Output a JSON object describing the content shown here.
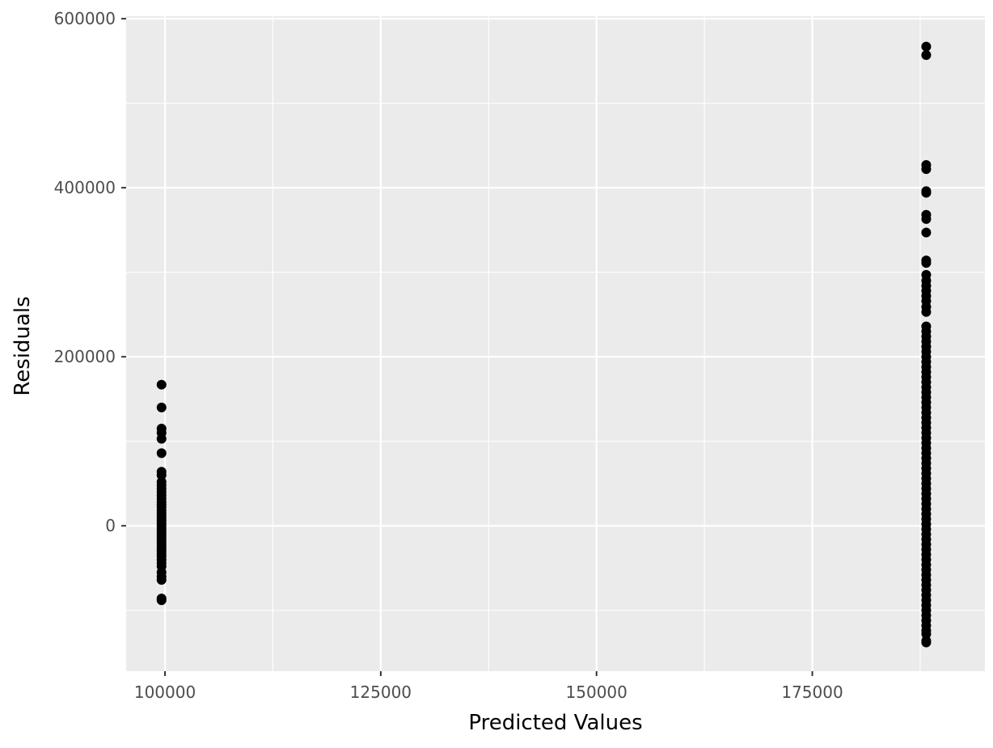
{
  "chart_data": {
    "type": "scatter",
    "title": "",
    "xlabel": "Predicted Values",
    "ylabel": "Residuals",
    "xlim": [
      95500,
      195000
    ],
    "ylim": [
      -172000,
      603000
    ],
    "x_major_ticks": [
      100000,
      125000,
      150000,
      175000
    ],
    "x_tick_labels": [
      "100000",
      "125000",
      "150000",
      "175000"
    ],
    "x_minor_ticks": [
      112500,
      137500,
      162500,
      187500
    ],
    "y_major_ticks": [
      0,
      200000,
      400000,
      600000
    ],
    "y_tick_labels": [
      "0",
      "200000",
      "400000",
      "600000"
    ],
    "y_minor_ticks": [
      -100000,
      100000,
      300000,
      500000
    ],
    "grid": true,
    "legend": "none",
    "colors": {
      "panel_background": "#ebebeb",
      "grid_line": "#ffffff",
      "point": "#000000",
      "tick_label": "#4d4d4d",
      "tick_mark": "#333333",
      "axis_title": "#000000"
    },
    "series": [
      {
        "x": 99600,
        "y": [
          167000,
          140000,
          115000,
          110000,
          103000,
          86000,
          64000,
          60000,
          52000,
          48000,
          44000,
          40000,
          36000,
          32000,
          28000,
          25000,
          22000,
          18000,
          15000,
          12000,
          9000,
          6000,
          3000,
          0,
          -3000,
          -6000,
          -9000,
          -12000,
          -15000,
          -18000,
          -21000,
          -24000,
          -27000,
          -30000,
          -33000,
          -36000,
          -40000,
          -44000,
          -48000,
          -55000,
          -60000,
          -64000,
          -86000,
          -88000
        ]
      },
      {
        "x": 188200,
        "y": [
          567000,
          557000,
          427000,
          422000,
          396000,
          394000,
          368000,
          363000,
          347000,
          314000,
          311000,
          297000,
          290000,
          284000,
          278000,
          272000,
          266000,
          259000,
          253000,
          236000,
          230000,
          224000,
          218000,
          212000,
          206000,
          200000,
          194000,
          188000,
          182000,
          176000,
          170000,
          164000,
          158000,
          152000,
          146000,
          140000,
          134000,
          128000,
          122000,
          116000,
          110000,
          104000,
          98000,
          92000,
          86000,
          80000,
          74000,
          68000,
          62000,
          56000,
          50000,
          44000,
          38000,
          32000,
          26000,
          20000,
          14000,
          8000,
          2000,
          -4000,
          -10000,
          -16000,
          -22000,
          -28000,
          -34000,
          -40000,
          -46000,
          -52000,
          -58000,
          -64000,
          -70000,
          -76000,
          -82000,
          -88000,
          -94000,
          -100000,
          -106000,
          -112000,
          -118000,
          -124000,
          -128000,
          -136000,
          -138000
        ]
      }
    ]
  }
}
